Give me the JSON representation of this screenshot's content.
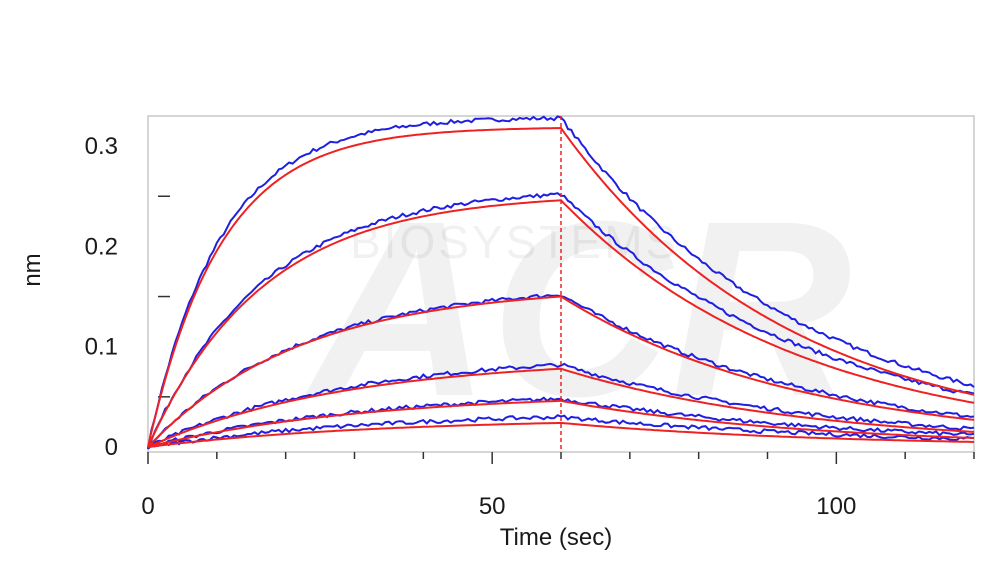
{
  "chart_data": {
    "type": "line",
    "title": "",
    "xlabel": "Time (sec)",
    "ylabel": "nm",
    "xlim": [
      0,
      120
    ],
    "ylim": [
      -0.005,
      0.33
    ],
    "x_ticks": [
      0,
      50,
      100
    ],
    "x_tick_labels": [
      "0",
      "50",
      "100"
    ],
    "y_ticks": [
      0,
      0.1,
      0.2,
      0.3
    ],
    "y_tick_labels": [
      "0",
      "0.1",
      "0.2",
      "0.3"
    ],
    "dissociation_start": 60,
    "grid": false,
    "legend": "none",
    "watermark_text": "BIOSYSTEMS",
    "colors": {
      "measured": "#1f1fe0",
      "fit": "#ee2222",
      "marker_line": "#ee2222"
    },
    "series": [
      {
        "kind": "measured",
        "association_end": 0.328,
        "dissociation_end": 0.061
      },
      {
        "kind": "measured",
        "association_end": 0.252,
        "dissociation_end": 0.052
      },
      {
        "kind": "measured",
        "association_end": 0.152,
        "dissociation_end": 0.03
      },
      {
        "kind": "measured",
        "association_end": 0.082,
        "dissociation_end": 0.018
      },
      {
        "kind": "measured",
        "association_end": 0.048,
        "dissociation_end": 0.012
      },
      {
        "kind": "measured",
        "association_end": 0.03,
        "dissociation_end": 0.008
      },
      {
        "kind": "fit",
        "association_end": 0.318,
        "dissociation_end": 0.052
      },
      {
        "kind": "fit",
        "association_end": 0.246,
        "dissociation_end": 0.044
      },
      {
        "kind": "fit",
        "association_end": 0.15,
        "dissociation_end": 0.027
      },
      {
        "kind": "fit",
        "association_end": 0.078,
        "dissociation_end": 0.015
      },
      {
        "kind": "fit",
        "association_end": 0.046,
        "dissociation_end": 0.009
      },
      {
        "kind": "fit",
        "association_end": 0.024,
        "dissociation_end": 0.005
      }
    ]
  }
}
